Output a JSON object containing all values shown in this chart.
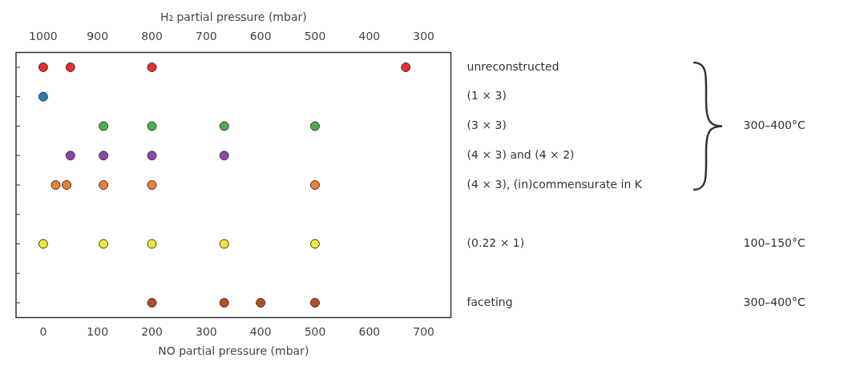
{
  "chart_data": {
    "type": "scatter",
    "orientation": "horizontal",
    "xlabel": "NO partial pressure (mbar)",
    "x2label": "H₂ partial pressure (mbar)",
    "categories": [
      "unreconstructed",
      "(1 × 3)",
      "(3 × 3)",
      "(4 × 3) and (4 × 2)",
      "(4 × 3), (in)commensurate in K",
      null,
      "(0.22 × 1)",
      null,
      "faceting"
    ],
    "xlim": [
      -50,
      750
    ],
    "xticks": [
      0,
      100,
      200,
      300,
      400,
      500,
      600,
      700
    ],
    "x2lim": [
      1050,
      250
    ],
    "x2ticks": [
      1000,
      900,
      800,
      700,
      600,
      500,
      400,
      300
    ],
    "grid": false,
    "legend": false,
    "marker": "circle",
    "series": [
      {
        "color": "#e8312a",
        "x": [
          "unreconstructed",
          "unreconstructed",
          "unreconstructed",
          "unreconstructed"
        ],
        "values": [
          0,
          50,
          200,
          667
        ]
      },
      {
        "color": "#2b7bba",
        "x": [
          "(1 × 3)"
        ],
        "values": [
          0
        ]
      },
      {
        "color": "#4daf4a",
        "x": [
          "(3 × 3)",
          "(3 × 3)",
          "(3 × 3)",
          "(3 × 3)"
        ],
        "values": [
          111,
          200,
          333,
          500
        ]
      },
      {
        "color": "#8e44ad",
        "x": [
          "(4 × 3) and (4 × 2)",
          "(4 × 3) and (4 × 2)",
          "(4 × 3) and (4 × 2)",
          "(4 × 3) and (4 × 2)"
        ],
        "values": [
          50,
          111,
          200,
          333
        ]
      },
      {
        "color": "#f08030",
        "x": [
          "(4 × 3), (in)commensurate in K",
          "(4 × 3), (in)commensurate in K",
          "(4 × 3), (in)commensurate in K",
          "(4 × 3), (in)commensurate in K",
          "(4 × 3), (in)commensurate in K"
        ],
        "values": [
          23,
          43,
          111,
          200,
          500
        ]
      },
      {
        "color": "#f2e63a",
        "x": [
          "(0.22 × 1)",
          "(0.22 × 1)",
          "(0.22 × 1)",
          "(0.22 × 1)",
          "(0.22 × 1)"
        ],
        "values": [
          0,
          111,
          200,
          333,
          500
        ]
      },
      {
        "color": "#b5501e",
        "x": [
          "faceting",
          "faceting",
          "faceting",
          "faceting"
        ],
        "values": [
          200,
          333,
          400,
          500
        ]
      }
    ],
    "annotations": [
      "300–400°C",
      "100–150°C",
      "300–400°C"
    ]
  }
}
